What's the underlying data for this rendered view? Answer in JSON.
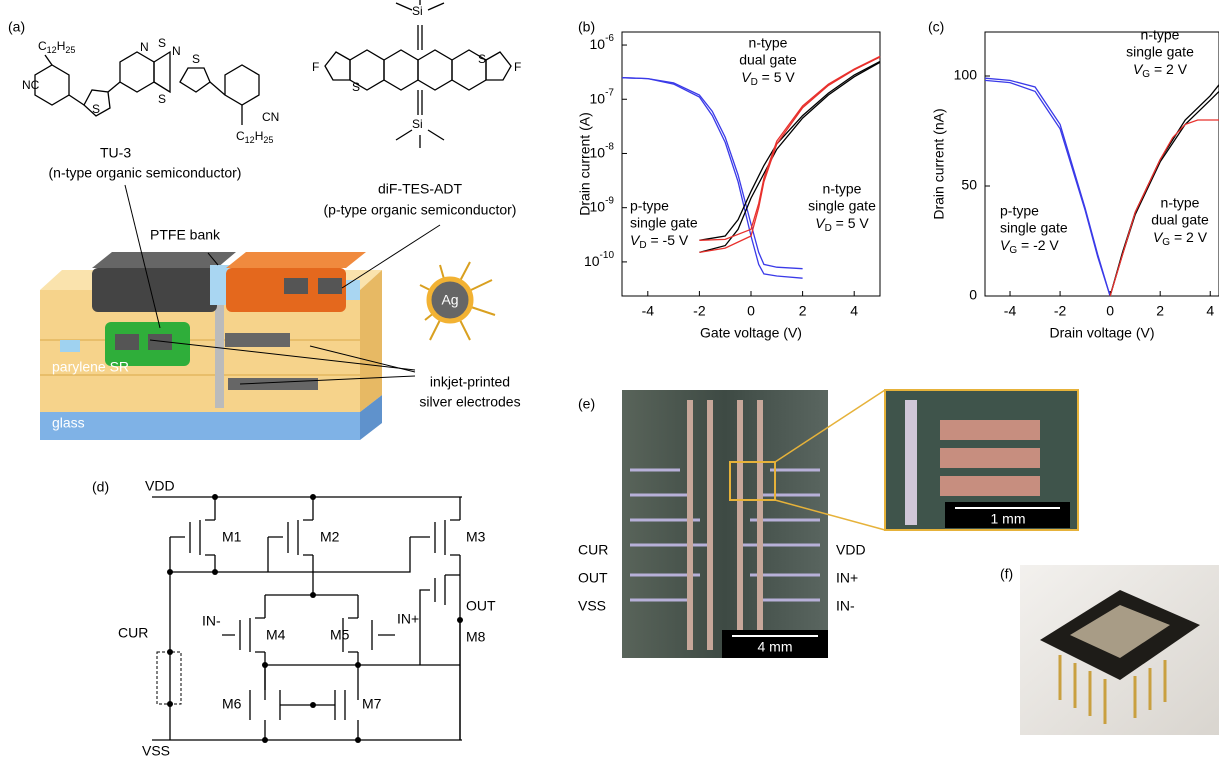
{
  "panel_labels": [
    "(a)",
    "(b)",
    "(c)",
    "(d)",
    "(e)",
    "(f)"
  ],
  "molecules": [
    {
      "name": "TU-3",
      "desc": "(n-type organic semiconductor)"
    },
    {
      "name": "diF-TES-ADT",
      "desc": "(p-type organic semiconductor)"
    }
  ],
  "atoms": {
    "nc": "NC",
    "cn": "CN",
    "c": "C",
    "c_sub": "12",
    "h": "H",
    "h_sub": "25",
    "s": "S",
    "n": "N",
    "f": "F",
    "si": "Si"
  },
  "device": {
    "ptfe": "PTFE bank",
    "parylene": "parylene SR",
    "glass": "glass",
    "ag": "Ag",
    "electrodes": [
      "inkjet-printed",
      "silver electrodes"
    ]
  },
  "circuit": {
    "vdd": "VDD",
    "vss": "VSS",
    "cur": "CUR",
    "out": "OUT",
    "in_minus": "IN-",
    "in_plus": "IN+",
    "transistors": [
      "M1",
      "M2",
      "M3",
      "M4",
      "M5",
      "M6",
      "M7",
      "M8"
    ]
  },
  "chip": {
    "left": [
      "CUR",
      "OUT",
      "VSS"
    ],
    "right": [
      "VDD",
      "IN+",
      "IN-"
    ],
    "scale": "4 mm",
    "zoom_scale": "1 mm"
  },
  "chart_data": [
    {
      "type": "line",
      "x_label": "Gate voltage (V)",
      "y_label": "Drain current (A)",
      "log_y": true,
      "xlim": [
        -5,
        5
      ],
      "ylim": [
        2.35e-11,
        1.74e-06
      ],
      "xticks": [
        -4,
        -2,
        0,
        2,
        4
      ],
      "yticks": [
        {
          "value": 1e-06,
          "label": "10",
          "sup": "-6"
        },
        {
          "value": 1e-07,
          "label": "10",
          "sup": "-7"
        },
        {
          "value": 1e-08,
          "label": "10",
          "sup": "-8"
        },
        {
          "value": 1e-09,
          "label": "10",
          "sup": "-9"
        },
        {
          "value": 1e-10,
          "label": "10",
          "sup": "-10"
        }
      ],
      "series": [
        {
          "color": "#3a3ae8",
          "x": [
            -5,
            -4,
            -3,
            -2,
            -1.5,
            -1,
            -0.5,
            0,
            0.3,
            0.5,
            1,
            2
          ],
          "values": [
            2.5e-07,
            2.4e-07,
            2e-07,
            1.2e-07,
            6e-08,
            2e-08,
            4e-09,
            5e-10,
            1.5e-10,
            9e-11,
            8e-11,
            7.5e-11
          ]
        },
        {
          "color": "#3a3ae8",
          "x": [
            -5,
            -4,
            -3,
            -2,
            -1.5,
            -1,
            -0.5,
            0,
            0.3,
            0.5,
            1,
            2
          ],
          "values": [
            2.5e-07,
            2.4e-07,
            1.9e-07,
            1.1e-07,
            5e-08,
            1.6e-08,
            3e-09,
            3e-10,
            9e-11,
            6e-11,
            5.5e-11,
            5e-11
          ]
        },
        {
          "color": "#000000",
          "x": [
            -2,
            -1,
            -0.5,
            0,
            0.5,
            1,
            2,
            3,
            4,
            5
          ],
          "values": [
            2.5e-10,
            3e-10,
            6e-10,
            2e-09,
            6e-09,
            1.5e-08,
            5e-08,
            1.3e-07,
            2.8e-07,
            5e-07
          ]
        },
        {
          "color": "#000000",
          "x": [
            -2,
            -1,
            -0.5,
            0,
            1,
            2,
            3,
            4,
            5
          ],
          "values": [
            1.5e-10,
            2e-10,
            4e-10,
            1.5e-09,
            1.2e-08,
            4.5e-08,
            1.2e-07,
            2.6e-07,
            4.8e-07
          ]
        },
        {
          "color": "#e8302c",
          "x": [
            -2,
            -1,
            0,
            0.3,
            0.5,
            1,
            2,
            3,
            4,
            5
          ],
          "values": [
            1.5e-10,
            1.8e-10,
            3e-10,
            1e-09,
            3e-09,
            1.5e-08,
            7e-08,
            1.8e-07,
            3.5e-07,
            6e-07
          ]
        },
        {
          "color": "#e8302c",
          "x": [
            -2,
            -1,
            0,
            0.3,
            0.5,
            1,
            2,
            3,
            4,
            5
          ],
          "values": [
            2.5e-10,
            2.6e-10,
            4e-10,
            1.2e-09,
            3.5e-09,
            1.7e-08,
            7.5e-08,
            1.9e-07,
            3.6e-07,
            6.2e-07
          ]
        }
      ],
      "annotations": [
        {
          "lines": [
            "n-type",
            "dual gate"
          ],
          "var": "V",
          "sub": "D",
          "eq": " = 5 V",
          "color": "#e8302c"
        },
        {
          "lines": [
            "p-type",
            "single gate"
          ],
          "var": "V",
          "sub": "D",
          "eq": " = -5 V",
          "color": "#3a3ae8"
        },
        {
          "lines": [
            "n-type",
            "single gate"
          ],
          "var": "V",
          "sub": "D",
          "eq": " = 5 V",
          "color": "#000000"
        }
      ]
    },
    {
      "type": "line",
      "x_label": "Drain voltage (V)",
      "y_label": "Drain current (nA)",
      "log_y": false,
      "xlim": [
        -5,
        4.35
      ],
      "ylim": [
        0,
        120
      ],
      "xticks": [
        -4,
        -2,
        0,
        2,
        4
      ],
      "yticks": [
        0,
        50,
        100
      ],
      "series": [
        {
          "color": "#3a3ae8",
          "x": [
            -5,
            -4,
            -3,
            -2,
            -1,
            -0.5,
            0
          ],
          "values": [
            99,
            98,
            95,
            78,
            40,
            19,
            0
          ]
        },
        {
          "color": "#3a3ae8",
          "x": [
            -5,
            -4,
            -3,
            -2,
            -1,
            -0.5,
            0
          ],
          "values": [
            98,
            97,
            93,
            76,
            39,
            18,
            0
          ]
        },
        {
          "color": "#000000",
          "x": [
            0,
            0.5,
            1,
            2,
            3,
            4,
            4.35
          ],
          "values": [
            0,
            20,
            38,
            62,
            80,
            91,
            96
          ]
        },
        {
          "color": "#000000",
          "x": [
            0,
            0.5,
            1,
            2,
            3,
            4,
            4.35
          ],
          "values": [
            0,
            19,
            37,
            61,
            78,
            89,
            93
          ]
        },
        {
          "color": "#e8302c",
          "x": [
            0,
            1,
            2,
            2.5,
            3,
            3.5,
            4,
            4.35
          ],
          "values": [
            0,
            38,
            62,
            72,
            78,
            80,
            80,
            80
          ]
        }
      ],
      "annotations": [
        {
          "lines": [
            "n-type",
            "single gate"
          ],
          "var": "V",
          "sub": "G",
          "eq": " = 2 V",
          "color": "#000000"
        },
        {
          "lines": [
            "p-type",
            "single gate"
          ],
          "var": "V",
          "sub": "G",
          "eq": " = -2 V",
          "color": "#3a3ae8"
        },
        {
          "lines": [
            "n-type",
            "dual gate"
          ],
          "var": "V",
          "sub": "G",
          "eq": " = 2 V",
          "color": "#e8302c"
        }
      ]
    }
  ]
}
